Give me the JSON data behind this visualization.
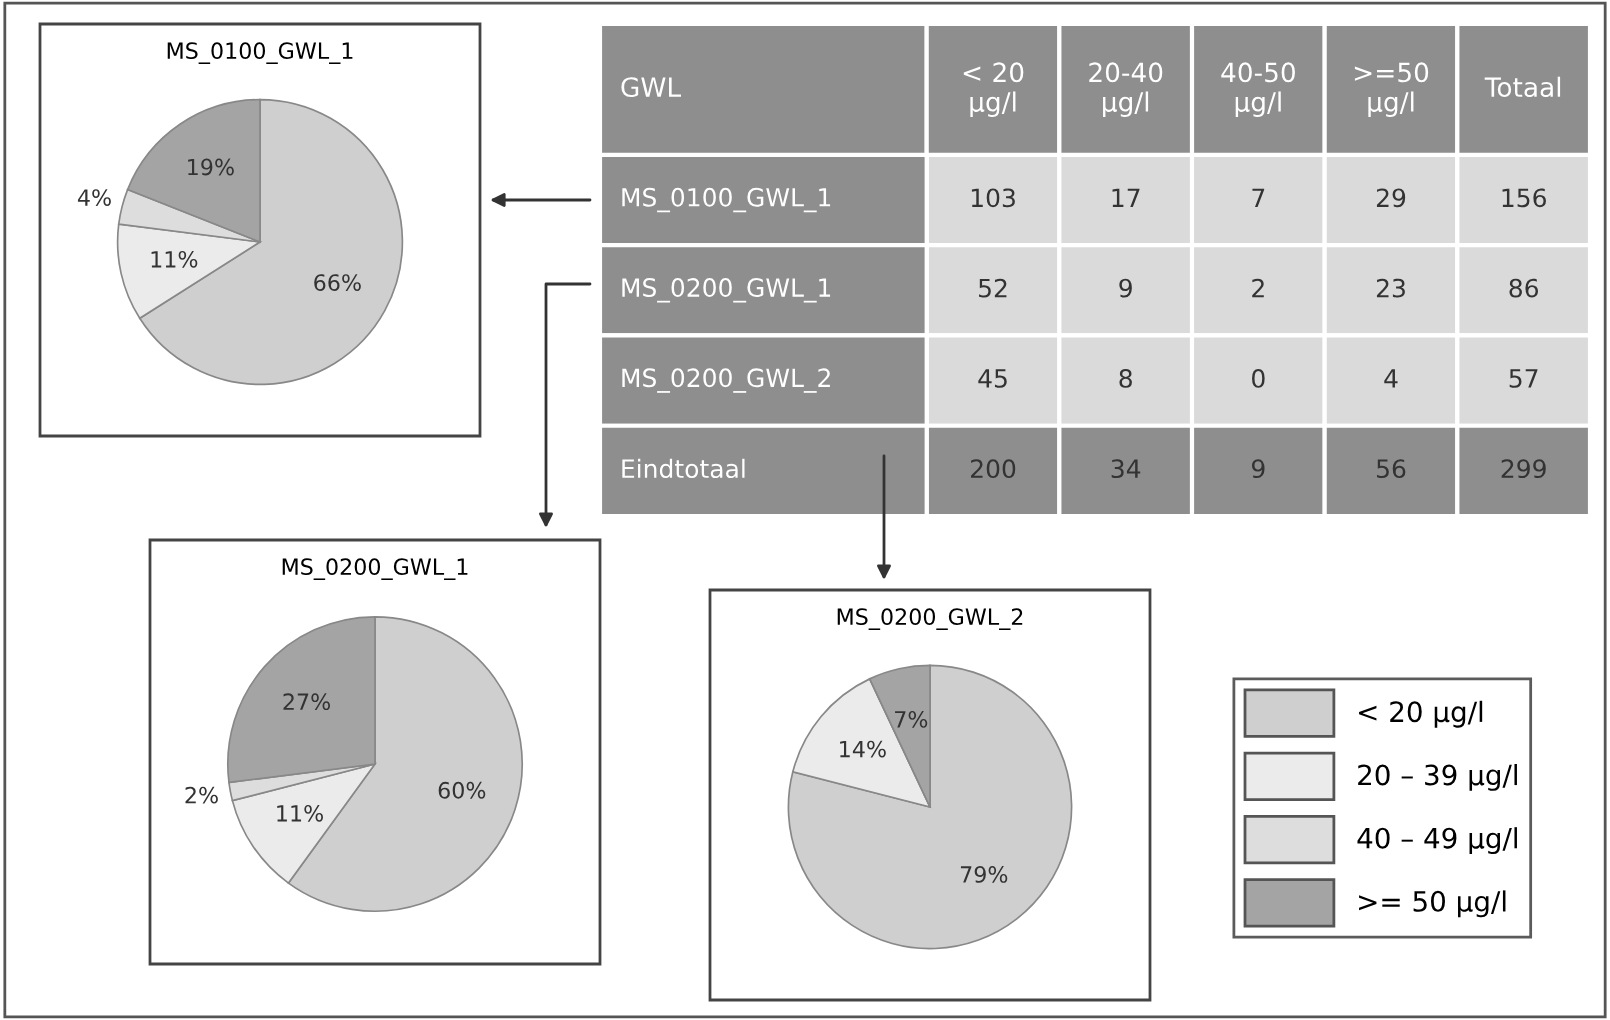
{
  "chart_data": [
    {
      "type": "pie",
      "title": "MS_0100_GWL_1",
      "categories": [
        null,
        null,
        null,
        null
      ],
      "values": [
        66,
        11,
        4,
        19
      ],
      "value_labels": [
        "66%",
        "11%",
        "4%",
        "19%"
      ],
      "colors": [
        "#cfcfcf",
        "#ebebeb",
        "#dddddd",
        "#a4a4a4"
      ],
      "legend": false
    },
    {
      "type": "heatmap",
      "title": "GWL",
      "categories": [
        "< 20 µg/l",
        "20-40 µg/l",
        "40-50 µg/l",
        ">=50 µg/l",
        "Totaal"
      ],
      "y_categories": [
        "MS_0100_GWL_1",
        "MS_0200_GWL_1",
        "MS_0200_GWL_2",
        "Eindtotaal"
      ],
      "cells": [
        [
          103,
          17,
          7,
          29,
          156
        ],
        [
          52,
          9,
          2,
          23,
          86
        ],
        [
          45,
          8,
          0,
          4,
          57
        ],
        [
          200,
          34,
          9,
          56,
          299
        ]
      ],
      "data_labels": true
    },
    {
      "type": "pie",
      "title": "MS_0200_GWL_1",
      "categories": [
        null,
        null,
        null,
        null
      ],
      "values": [
        60,
        11,
        2,
        27
      ],
      "value_labels": [
        "60%",
        "11%",
        "2%",
        "27%"
      ],
      "colors": [
        "#cfcfcf",
        "#ebebeb",
        "#dddddd",
        "#a4a4a4"
      ],
      "legend": false
    },
    {
      "type": "pie",
      "title": "MS_0200_GWL_2",
      "categories": [
        "< 20 µg/l",
        "20 – 39 µg/l",
        "40 – 49 µg/l",
        ">= 50 µg/l"
      ],
      "values": [
        79,
        14,
        0,
        7
      ],
      "value_labels": [
        "79%",
        "14%",
        null,
        "7%"
      ],
      "colors": [
        "#cfcfcf",
        "#ebebeb",
        "#dddddd",
        "#a4a4a4"
      ],
      "legend": "right"
    }
  ]
}
